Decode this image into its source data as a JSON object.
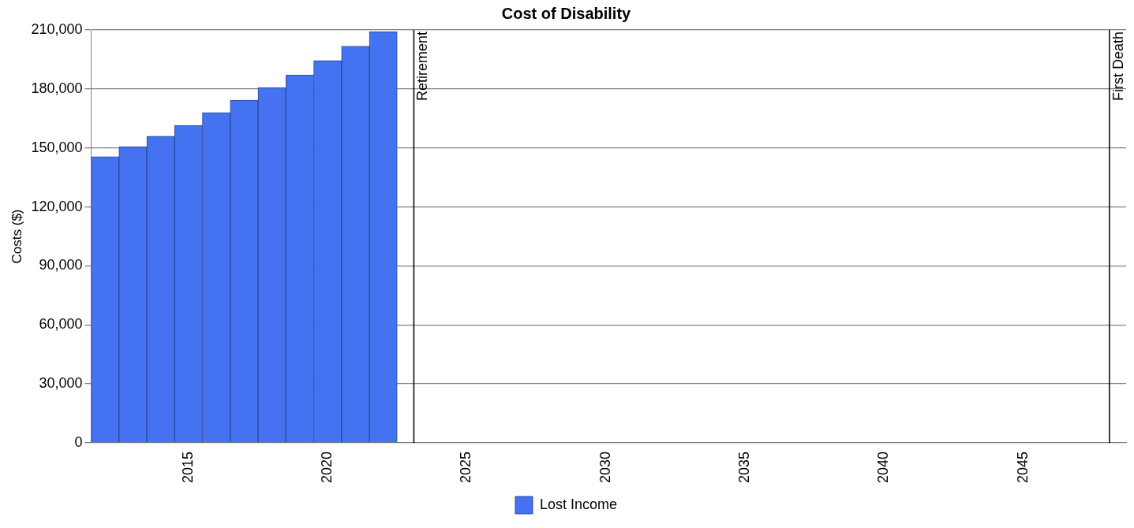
{
  "chart_data": {
    "type": "bar",
    "title": "Cost of Disability",
    "ylabel": "Costs ($)",
    "x": [
      2012,
      2013,
      2014,
      2015,
      2016,
      2017,
      2018,
      2019,
      2020,
      2021,
      2022
    ],
    "series": [
      {
        "name": "Lost Income",
        "color": "#4472f0",
        "values": [
          145500,
          150500,
          156000,
          161500,
          168000,
          174300,
          180700,
          187100,
          194400,
          201800,
          209100
        ]
      }
    ],
    "xlim": [
      2011.5,
      2048.7
    ],
    "xticks": [
      2015,
      2020,
      2025,
      2030,
      2035,
      2040,
      2045
    ],
    "ylim": [
      0,
      210000
    ],
    "yticks": [
      0,
      {
        "value": 30000,
        "label": "30,000"
      },
      {
        "value": 60000,
        "label": "60,000"
      },
      {
        "value": 90000,
        "label": "90,000"
      },
      {
        "value": 120000,
        "label": "120,000"
      },
      {
        "value": 150000,
        "label": "150,000"
      },
      {
        "value": 180000,
        "label": "180,000"
      },
      {
        "value": 210000,
        "label": "210,000"
      }
    ],
    "ref_lines": [
      {
        "axis": "x",
        "value": 2023.1,
        "label": "Retirement",
        "color": "#000000"
      },
      {
        "axis": "x",
        "value": 2048.1,
        "label": "First Death",
        "color": "#000000"
      }
    ],
    "grid": "y",
    "legend": "bottom"
  }
}
